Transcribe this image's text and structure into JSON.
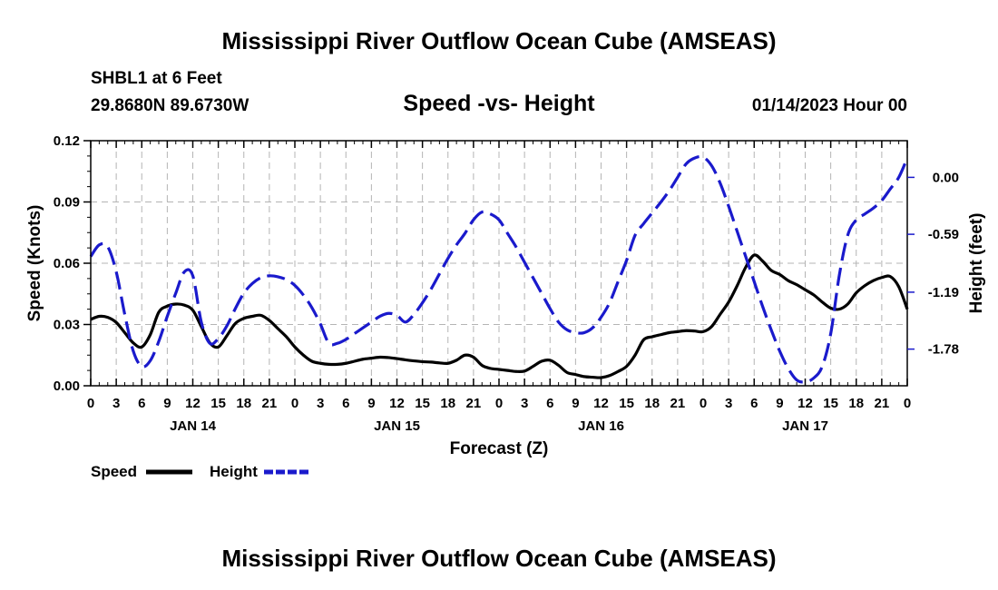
{
  "page": {
    "title": "Mississippi River Outflow Ocean Cube (AMSEAS)",
    "title_repeat": "Mississippi River Outflow Ocean Cube (AMSEAS)",
    "station": "SHBL1 at 6 Feet",
    "coords": "29.8680N  89.6730W",
    "subtitle": "Speed -vs- Height",
    "datetime": "01/14/2023 Hour 00"
  },
  "chart_data": {
    "type": "line",
    "title": "Speed -vs- Height",
    "xlabel": "Forecast (Z)",
    "ylabel": "Speed (Knots)",
    "y2label": "Height (feet)",
    "xlim": [
      0,
      96
    ],
    "ylim": [
      0,
      0.12
    ],
    "y2lim": [
      -2.16,
      0.38
    ],
    "x_tick_values": [
      0,
      3,
      6,
      9,
      12,
      15,
      18,
      21,
      24,
      27,
      30,
      33,
      36,
      39,
      42,
      45,
      48,
      51,
      54,
      57,
      60,
      63,
      66,
      69,
      72,
      75,
      78,
      81,
      84,
      87,
      90,
      93,
      96
    ],
    "x_tick_labels": [
      "0",
      "3",
      "6",
      "9",
      "12",
      "15",
      "18",
      "21",
      "0",
      "3",
      "6",
      "9",
      "12",
      "15",
      "18",
      "21",
      "0",
      "3",
      "6",
      "9",
      "12",
      "15",
      "18",
      "21",
      "0",
      "3",
      "6",
      "9",
      "12",
      "15",
      "18",
      "21",
      "0"
    ],
    "day_labels": [
      {
        "x": 12,
        "label": "JAN 14"
      },
      {
        "x": 36,
        "label": "JAN 15"
      },
      {
        "x": 60,
        "label": "JAN 16"
      },
      {
        "x": 84,
        "label": "JAN 17"
      }
    ],
    "y_ticks": [
      0.0,
      0.03,
      0.06,
      0.09,
      0.12
    ],
    "y_tick_labels": [
      "0.00",
      "0.03",
      "0.06",
      "0.09",
      "0.12"
    ],
    "y2_ticks": [
      0.0,
      -0.59,
      -1.19,
      -1.78
    ],
    "y2_tick_labels": [
      "0.00",
      "-0.59",
      "-1.19",
      "-1.78"
    ],
    "grid": true,
    "legend_position": "bottom-left",
    "series": [
      {
        "name": "Speed",
        "axis": "left",
        "color": "#000000",
        "dash": "solid",
        "x": [
          0,
          1,
          2,
          3,
          4,
          5,
          6,
          7,
          8,
          9,
          10,
          11,
          12,
          13,
          14,
          15,
          16,
          17,
          18,
          19,
          20,
          21,
          22,
          23,
          24,
          25,
          26,
          27,
          28,
          29,
          30,
          31,
          32,
          33,
          34,
          35,
          36,
          37,
          38,
          39,
          40,
          41,
          42,
          43,
          44,
          45,
          46,
          47,
          48,
          49,
          50,
          51,
          52,
          53,
          54,
          55,
          56,
          57,
          58,
          59,
          60,
          61,
          62,
          63,
          64,
          65,
          66,
          67,
          68,
          69,
          70,
          71,
          72,
          73,
          74,
          75,
          76,
          77,
          78,
          79,
          80,
          81,
          82,
          83,
          84,
          85,
          86,
          87,
          88,
          89,
          90,
          91,
          92,
          93,
          94,
          95,
          96
        ],
        "values": [
          0.0325,
          0.034,
          0.0335,
          0.031,
          0.026,
          0.021,
          0.019,
          0.025,
          0.036,
          0.039,
          0.04,
          0.0395,
          0.037,
          0.029,
          0.021,
          0.019,
          0.0245,
          0.0305,
          0.033,
          0.034,
          0.0345,
          0.032,
          0.028,
          0.024,
          0.019,
          0.015,
          0.012,
          0.011,
          0.0105,
          0.0105,
          0.011,
          0.012,
          0.013,
          0.0135,
          0.014,
          0.0138,
          0.0133,
          0.0127,
          0.0122,
          0.0118,
          0.0116,
          0.0112,
          0.011,
          0.0125,
          0.015,
          0.014,
          0.01,
          0.0085,
          0.008,
          0.0075,
          0.007,
          0.0072,
          0.0095,
          0.012,
          0.0125,
          0.01,
          0.0065,
          0.0055,
          0.0045,
          0.0042,
          0.004,
          0.005,
          0.007,
          0.0095,
          0.015,
          0.0225,
          0.024,
          0.025,
          0.026,
          0.0265,
          0.027,
          0.0268,
          0.0265,
          0.029,
          0.035,
          0.041,
          0.049,
          0.058,
          0.064,
          0.061,
          0.0565,
          0.0545,
          0.0515,
          0.0495,
          0.047,
          0.0445,
          0.041,
          0.038,
          0.0375,
          0.04,
          0.0455,
          0.049,
          0.0515,
          0.053,
          0.0535,
          0.0485,
          0.0375
        ]
      },
      {
        "name": "Height",
        "axis": "right",
        "color": "#1a1acc",
        "dash": "dashed",
        "x": [
          0,
          1,
          2,
          3,
          4,
          5,
          6,
          7,
          8,
          9,
          10,
          11,
          12,
          13,
          14,
          15,
          16,
          17,
          18,
          19,
          20,
          21,
          22,
          23,
          24,
          25,
          26,
          27,
          28,
          29,
          30,
          31,
          32,
          33,
          34,
          35,
          36,
          37,
          38,
          39,
          40,
          41,
          42,
          43,
          44,
          45,
          46,
          47,
          48,
          49,
          50,
          51,
          52,
          53,
          54,
          55,
          56,
          57,
          58,
          59,
          60,
          61,
          62,
          63,
          64,
          65,
          66,
          67,
          68,
          69,
          70,
          71,
          72,
          73,
          74,
          75,
          76,
          77,
          78,
          79,
          80,
          81,
          82,
          83,
          84,
          85,
          86,
          87,
          88,
          89,
          90,
          91,
          92,
          93,
          94,
          95,
          96
        ],
        "values": [
          -0.82,
          -0.7,
          -0.72,
          -0.98,
          -1.42,
          -1.8,
          -1.96,
          -1.9,
          -1.7,
          -1.44,
          -1.2,
          -0.98,
          -1.02,
          -1.5,
          -1.72,
          -1.67,
          -1.54,
          -1.36,
          -1.2,
          -1.1,
          -1.04,
          -1.02,
          -1.03,
          -1.06,
          -1.12,
          -1.22,
          -1.35,
          -1.52,
          -1.72,
          -1.72,
          -1.68,
          -1.62,
          -1.56,
          -1.5,
          -1.44,
          -1.41,
          -1.43,
          -1.5,
          -1.42,
          -1.3,
          -1.16,
          -1.0,
          -0.84,
          -0.7,
          -0.58,
          -0.44,
          -0.36,
          -0.38,
          -0.44,
          -0.58,
          -0.72,
          -0.88,
          -1.04,
          -1.2,
          -1.36,
          -1.5,
          -1.58,
          -1.61,
          -1.61,
          -1.56,
          -1.45,
          -1.3,
          -1.08,
          -0.86,
          -0.6,
          -0.48,
          -0.37,
          -0.26,
          -0.14,
          0.0,
          0.14,
          0.2,
          0.21,
          0.12,
          -0.06,
          -0.3,
          -0.56,
          -0.82,
          -1.08,
          -1.34,
          -1.58,
          -1.8,
          -1.98,
          -2.1,
          -2.12,
          -2.08,
          -1.96,
          -1.62,
          -1.02,
          -0.6,
          -0.44,
          -0.38,
          -0.32,
          -0.24,
          -0.12,
          0.0,
          0.2
        ]
      }
    ]
  }
}
